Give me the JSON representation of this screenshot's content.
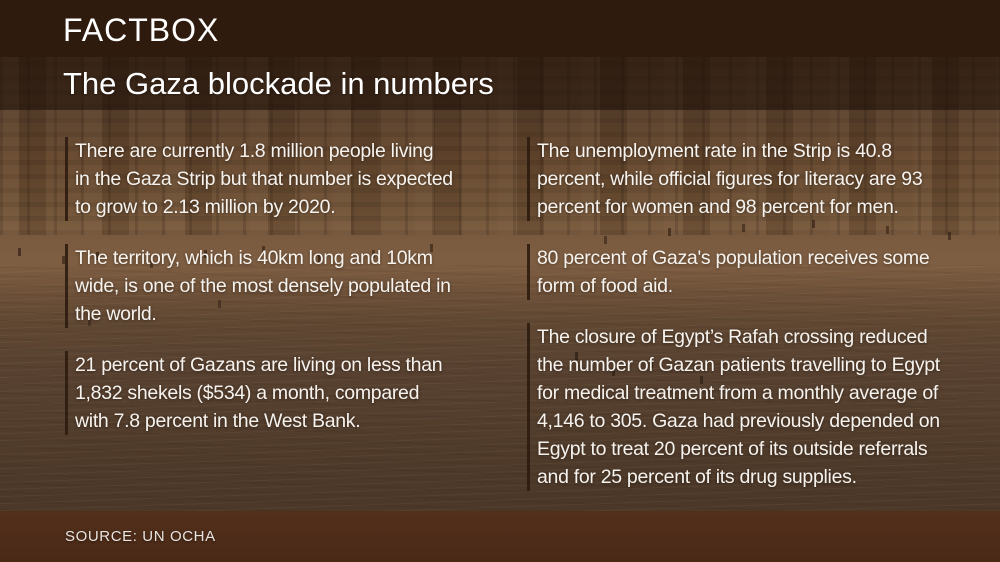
{
  "header": {
    "kicker": "FACTBOX",
    "title": "The Gaza blockade in numbers"
  },
  "facts": {
    "left": [
      "There are currently 1.8 million people living\nin the Gaza Strip but that number is expected\nto grow to 2.13 million by 2020.",
      "The territory, which is 40km long and 10km\nwide, is one of the most densely populated in\nthe world.",
      "21 percent of Gazans are living on less than\n1,832 shekels ($534) a month, compared\nwith 7.8 percent in the West Bank."
    ],
    "right": [
      "The unemployment rate in the Strip is 40.8\npercent, while official figures for literacy are 93\npercent for women and 98 percent for men.",
      "80 percent of Gaza's population receives some\nform of food aid.",
      "The closure of Egypt’s Rafah crossing reduced\nthe number of Gazan patients travelling to Egypt\nfor medical treatment from a monthly average of\n4,146 to 305. Gaza had previously depended on\nEgypt to treat 20 percent of its outside referrals\nand for 25 percent of its drug supplies."
    ]
  },
  "footer": {
    "source": "SOURCE: UN OCHA"
  },
  "colors": {
    "header_bg": "#2F1B0D",
    "accent_bar": "#2E1C0F",
    "text": "#F6F3EF",
    "footer_overlay": "#56280F"
  }
}
